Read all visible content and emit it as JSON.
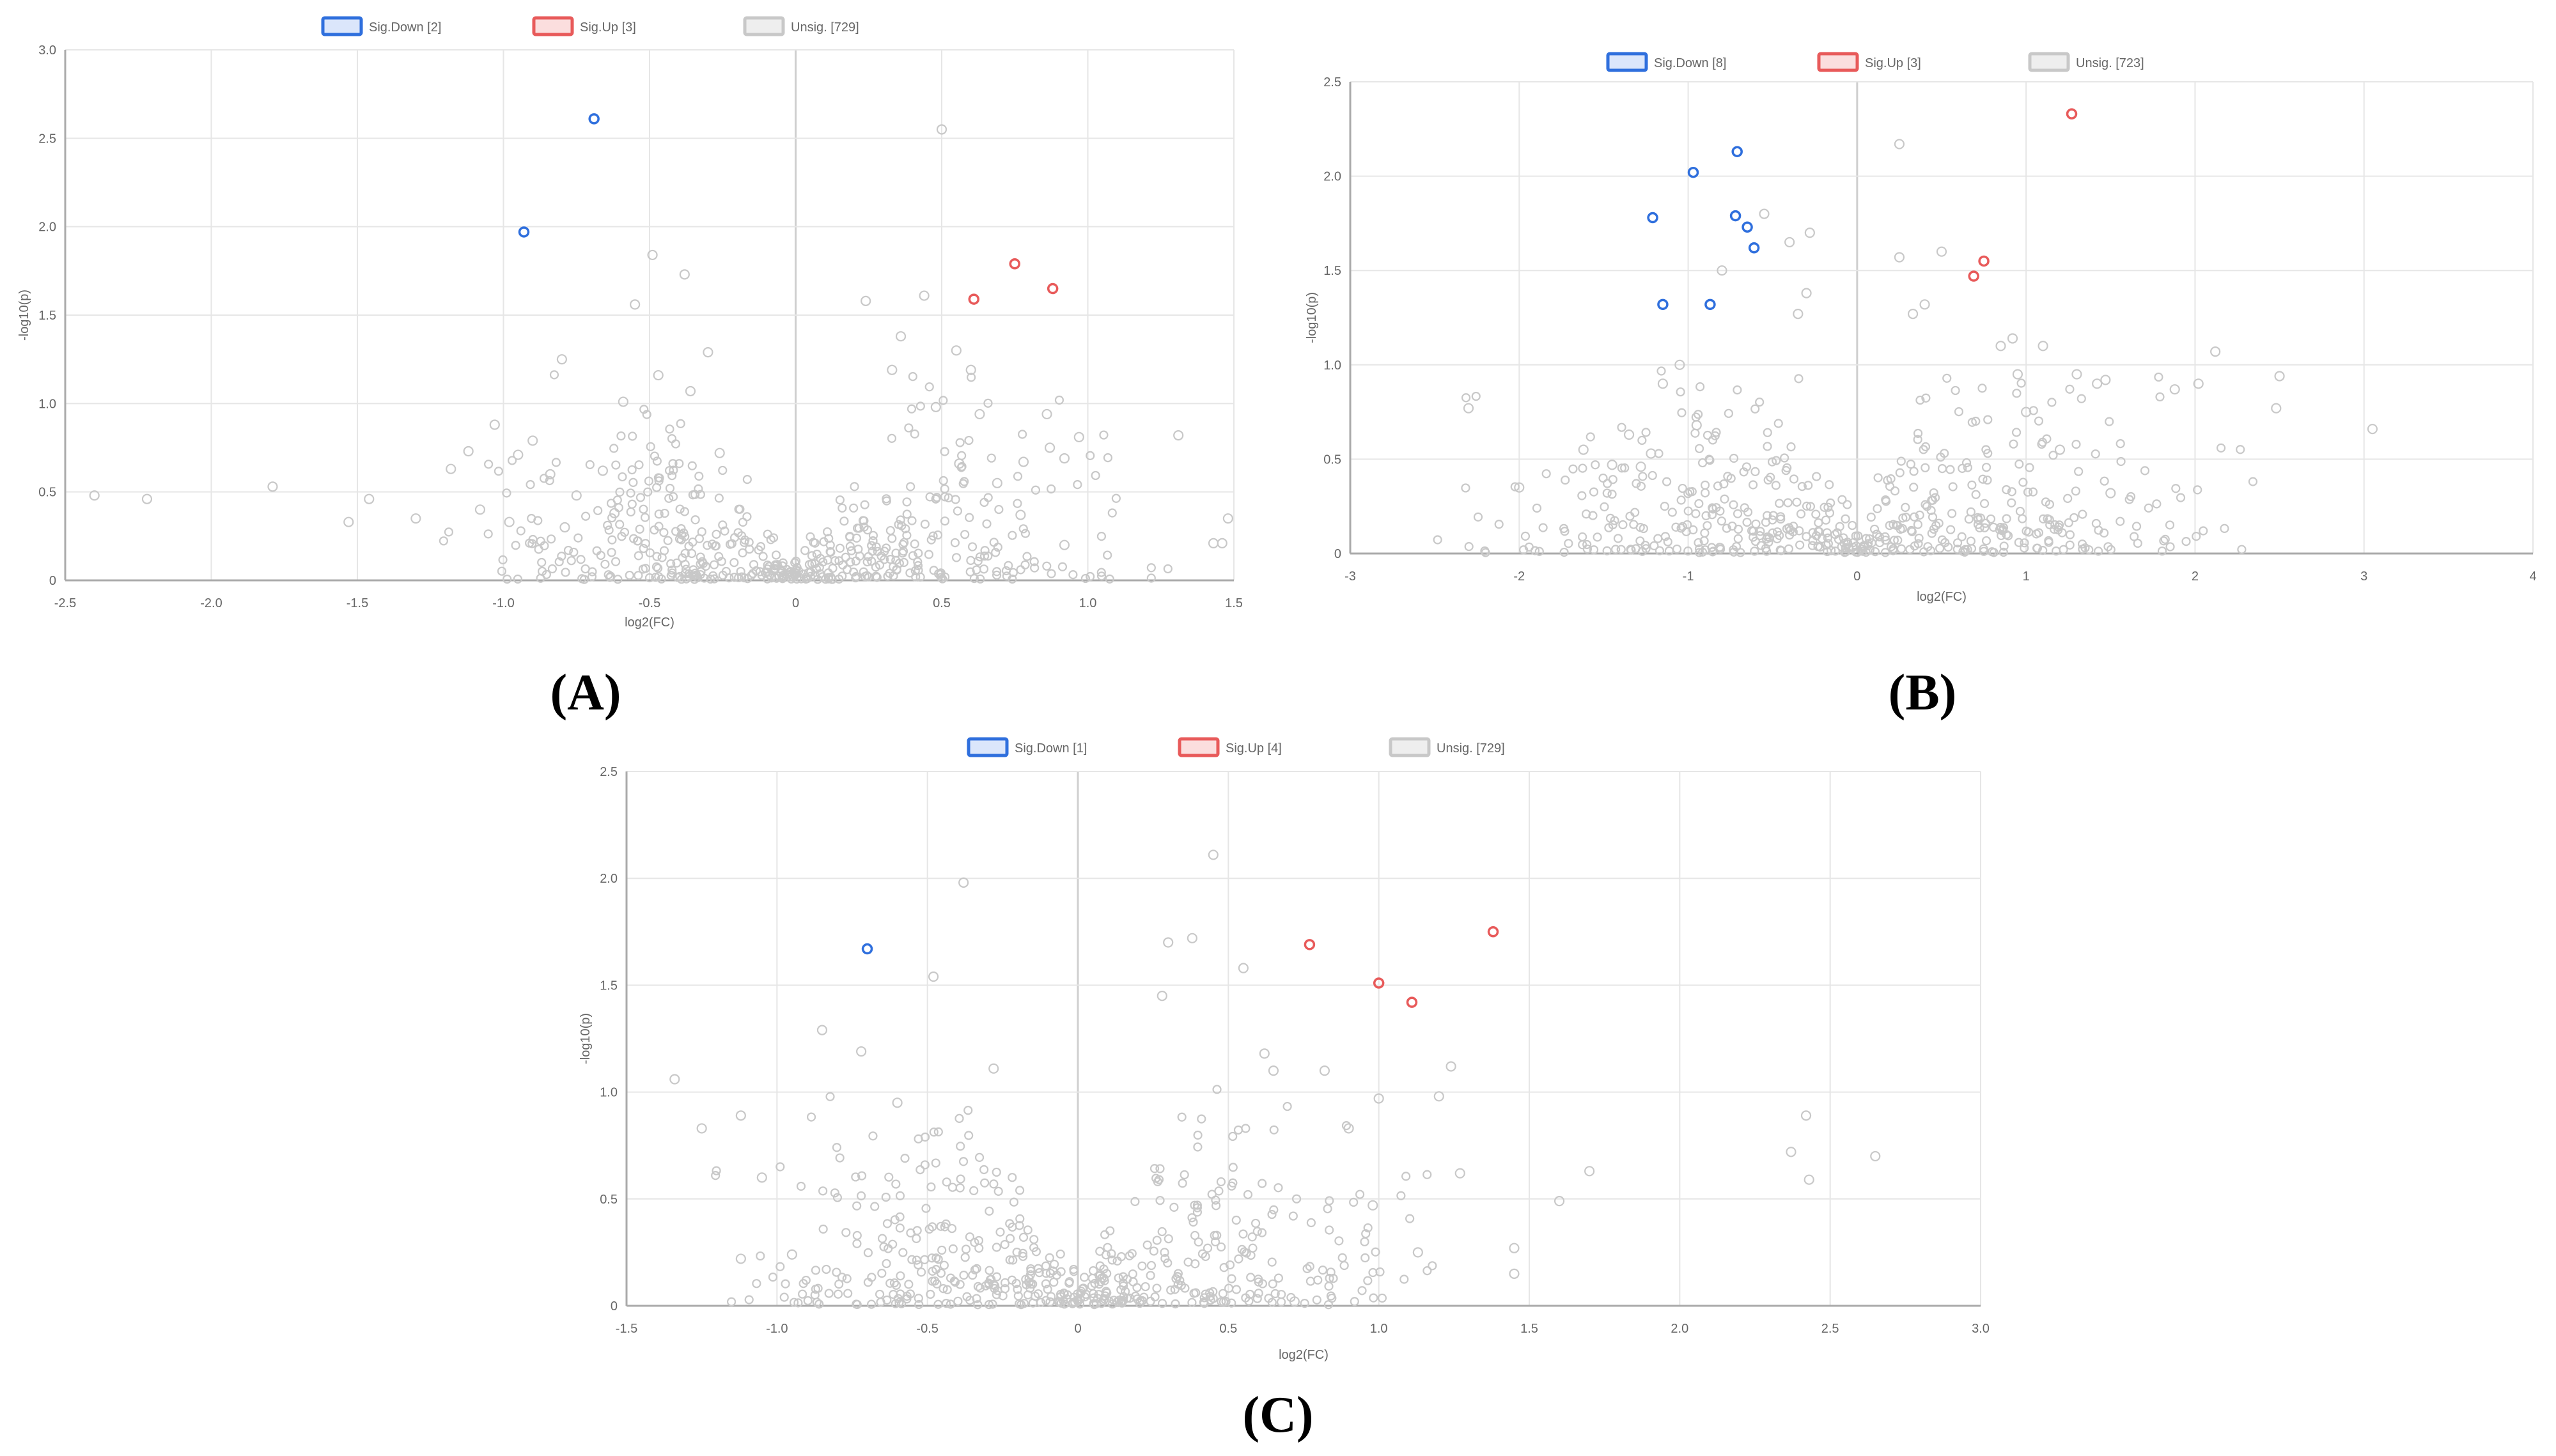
{
  "figure": {
    "panel_labels": [
      "(A)",
      "(B)",
      "(C)"
    ]
  },
  "colors": {
    "sig_down": "#2f6fdd",
    "sig_up": "#e85a5a",
    "unsig": "#c8c8c8",
    "grid": "#e6e6e6",
    "axis": "#aaaaaa",
    "tick_text": "#666666"
  },
  "chart_data": [
    {
      "type": "scatter",
      "panel": "(A)",
      "title": "",
      "xlabel": "log2(FC)",
      "ylabel": "-log10(p)",
      "xlim": [
        -2.5,
        1.5
      ],
      "ylim": [
        0,
        3.0
      ],
      "xticks": [
        -2.5,
        -2.0,
        -1.5,
        -1.0,
        -0.5,
        0,
        0.5,
        1.0,
        1.5
      ],
      "yticks": [
        0,
        0.5,
        1.0,
        1.5,
        2.0,
        2.5,
        3.0
      ],
      "xtick_labels": [
        "-2.5",
        "-2.0",
        "-1.5",
        "-1.0",
        "-0.5",
        "0",
        "0.5",
        "1.0",
        "1.5"
      ],
      "ytick_labels": [
        "0",
        "0.5",
        "1.0",
        "1.5",
        "2.0",
        "2.5",
        "3.0"
      ],
      "legend": [
        "Sig.Down [2]",
        "Sig.Up [3]",
        "Unsig. [729]"
      ],
      "legend_position": "top-center",
      "series": [
        {
          "name": "Sig.Down [2]",
          "points": [
            [
              -0.69,
              2.61
            ],
            [
              -0.93,
              1.97
            ]
          ]
        },
        {
          "name": "Sig.Up [3]",
          "points": [
            [
              0.75,
              1.79
            ],
            [
              0.88,
              1.65
            ],
            [
              0.61,
              1.59
            ]
          ]
        },
        {
          "name": "Unsig. [729]",
          "points": [
            [
              -2.4,
              0.48
            ],
            [
              -2.22,
              0.46
            ],
            [
              -1.79,
              0.53
            ],
            [
              -1.53,
              0.33
            ],
            [
              -1.46,
              0.46
            ],
            [
              -1.3,
              0.35
            ],
            [
              -1.18,
              0.63
            ],
            [
              -1.12,
              0.73
            ],
            [
              -1.08,
              0.4
            ],
            [
              -1.03,
              0.88
            ],
            [
              -0.98,
              0.33
            ],
            [
              -0.95,
              0.71
            ],
            [
              -0.9,
              0.79
            ],
            [
              -0.84,
              0.6
            ],
            [
              -0.8,
              1.25
            ],
            [
              -0.79,
              0.3
            ],
            [
              -0.75,
              0.48
            ],
            [
              -0.66,
              0.62
            ],
            [
              -0.62,
              0.38
            ],
            [
              -0.59,
              1.01
            ],
            [
              -0.55,
              1.56
            ],
            [
              -0.49,
              1.84
            ],
            [
              -0.47,
              1.16
            ],
            [
              -0.38,
              1.73
            ],
            [
              -0.36,
              1.07
            ],
            [
              -0.3,
              1.29
            ],
            [
              -0.26,
              0.72
            ],
            [
              0.48,
              0.98
            ],
            [
              0.5,
              2.55
            ],
            [
              0.55,
              1.3
            ],
            [
              0.6,
              1.19
            ],
            [
              0.44,
              1.61
            ],
            [
              0.36,
              1.38
            ],
            [
              0.24,
              1.58
            ],
            [
              0.33,
              1.19
            ],
            [
              0.56,
              0.66
            ],
            [
              0.63,
              0.94
            ],
            [
              0.69,
              0.55
            ],
            [
              0.78,
              0.67
            ],
            [
              0.86,
              0.94
            ],
            [
              0.87,
              0.75
            ],
            [
              0.92,
              0.69
            ],
            [
              0.97,
              0.81
            ],
            [
              0.92,
              0.2
            ],
            [
              0.77,
              0.37
            ],
            [
              1.31,
              0.82
            ],
            [
              1.43,
              0.21
            ],
            [
              1.46,
              0.21
            ],
            [
              1.48,
              0.35
            ]
          ]
        }
      ]
    },
    {
      "type": "scatter",
      "panel": "(B)",
      "title": "",
      "xlabel": "log2(FC)",
      "ylabel": "-log10(p)",
      "xlim": [
        -3,
        4
      ],
      "ylim": [
        0,
        2.5
      ],
      "xticks": [
        -3,
        -2,
        -1,
        0,
        1,
        2,
        3,
        4
      ],
      "yticks": [
        0,
        0.5,
        1.0,
        1.5,
        2.0,
        2.5
      ],
      "xtick_labels": [
        "-3",
        "-2",
        "-1",
        "0",
        "1",
        "2",
        "3",
        "4"
      ],
      "ytick_labels": [
        "0",
        "0.5",
        "1.0",
        "1.5",
        "2.0",
        "2.5"
      ],
      "legend": [
        "Sig.Down [8]",
        "Sig.Up [3]",
        "Unsig. [723]"
      ],
      "legend_position": "top-center",
      "series": [
        {
          "name": "Sig.Down [8]",
          "points": [
            [
              -0.71,
              2.13
            ],
            [
              -0.97,
              2.02
            ],
            [
              -1.21,
              1.78
            ],
            [
              -0.72,
              1.79
            ],
            [
              -0.65,
              1.73
            ],
            [
              -0.61,
              1.62
            ],
            [
              -1.15,
              1.32
            ],
            [
              -0.87,
              1.32
            ]
          ]
        },
        {
          "name": "Sig.Up [3]",
          "points": [
            [
              1.27,
              2.33
            ],
            [
              0.75,
              1.55
            ],
            [
              0.69,
              1.47
            ]
          ]
        },
        {
          "name": "Unsig. [723]",
          "points": [
            [
              -2.3,
              0.77
            ],
            [
              -2.0,
              0.35
            ],
            [
              -1.62,
              0.55
            ],
            [
              -1.45,
              0.47
            ],
            [
              -1.35,
              0.63
            ],
            [
              -1.28,
              0.46
            ],
            [
              -1.22,
              0.53
            ],
            [
              -1.15,
              0.9
            ],
            [
              -1.05,
              1.0
            ],
            [
              -0.95,
              0.68
            ],
            [
              -0.8,
              1.5
            ],
            [
              -0.55,
              1.8
            ],
            [
              -0.4,
              1.65
            ],
            [
              -0.28,
              1.7
            ],
            [
              -0.3,
              1.38
            ],
            [
              -0.35,
              1.27
            ],
            [
              0.25,
              2.17
            ],
            [
              0.25,
              1.57
            ],
            [
              0.5,
              1.6
            ],
            [
              0.4,
              1.32
            ],
            [
              0.33,
              1.27
            ],
            [
              0.85,
              1.1
            ],
            [
              0.92,
              1.14
            ],
            [
              0.95,
              0.95
            ],
            [
              1.0,
              0.75
            ],
            [
              1.1,
              1.1
            ],
            [
              1.2,
              0.55
            ],
            [
              1.3,
              0.95
            ],
            [
              1.5,
              0.32
            ],
            [
              1.42,
              0.9
            ],
            [
              1.47,
              0.92
            ],
            [
              1.88,
              0.87
            ],
            [
              2.02,
              0.9
            ],
            [
              2.12,
              1.07
            ],
            [
              2.5,
              0.94
            ],
            [
              2.48,
              0.77
            ],
            [
              3.05,
              0.66
            ]
          ]
        }
      ]
    },
    {
      "type": "scatter",
      "panel": "(C)",
      "title": "",
      "xlabel": "log2(FC)",
      "ylabel": "-log10(p)",
      "xlim": [
        -1.5,
        3.0
      ],
      "ylim": [
        0,
        2.5
      ],
      "xticks": [
        -1.5,
        -1.0,
        -0.5,
        0,
        0.5,
        1.0,
        1.5,
        2.0,
        2.5,
        3.0
      ],
      "yticks": [
        0,
        0.5,
        1.0,
        1.5,
        2.0,
        2.5
      ],
      "xtick_labels": [
        "-1.5",
        "-1.0",
        "-0.5",
        "0",
        "0.5",
        "1.0",
        "1.5",
        "2.0",
        "2.5",
        "3.0"
      ],
      "ytick_labels": [
        "0",
        "0.5",
        "1.0",
        "1.5",
        "2.0",
        "2.5"
      ],
      "legend": [
        "Sig.Down [1]",
        "Sig.Up [4]",
        "Unsig. [729]"
      ],
      "legend_position": "top-center",
      "series": [
        {
          "name": "Sig.Down [1]",
          "points": [
            [
              -0.7,
              1.67
            ]
          ]
        },
        {
          "name": "Sig.Up [4]",
          "points": [
            [
              1.38,
              1.75
            ],
            [
              0.77,
              1.69
            ],
            [
              1.0,
              1.51
            ],
            [
              1.11,
              1.42
            ]
          ]
        },
        {
          "name": "Unsig. [729]",
          "points": [
            [
              -1.34,
              1.06
            ],
            [
              -1.25,
              0.83
            ],
            [
              -1.12,
              0.89
            ],
            [
              -1.12,
              0.22
            ],
            [
              -1.05,
              0.6
            ],
            [
              -0.95,
              0.24
            ],
            [
              -0.85,
              1.29
            ],
            [
              -0.72,
              1.19
            ],
            [
              -0.6,
              0.95
            ],
            [
              -0.48,
              1.54
            ],
            [
              -0.38,
              1.98
            ],
            [
              -0.28,
              1.11
            ],
            [
              0.45,
              2.11
            ],
            [
              0.38,
              1.72
            ],
            [
              0.3,
              1.7
            ],
            [
              0.28,
              1.45
            ],
            [
              0.55,
              1.58
            ],
            [
              0.62,
              1.18
            ],
            [
              0.65,
              1.1
            ],
            [
              0.82,
              1.1
            ],
            [
              0.9,
              0.83
            ],
            [
              1.0,
              0.97
            ],
            [
              0.98,
              0.47
            ],
            [
              1.13,
              0.25
            ],
            [
              1.2,
              0.98
            ],
            [
              1.24,
              1.12
            ],
            [
              1.27,
              0.62
            ],
            [
              1.45,
              0.27
            ],
            [
              1.45,
              0.15
            ],
            [
              1.6,
              0.49
            ],
            [
              1.7,
              0.63
            ],
            [
              2.37,
              0.72
            ],
            [
              2.42,
              0.89
            ],
            [
              2.43,
              0.59
            ],
            [
              2.65,
              0.7
            ],
            [
              0.72,
              0.02
            ]
          ]
        }
      ]
    }
  ]
}
